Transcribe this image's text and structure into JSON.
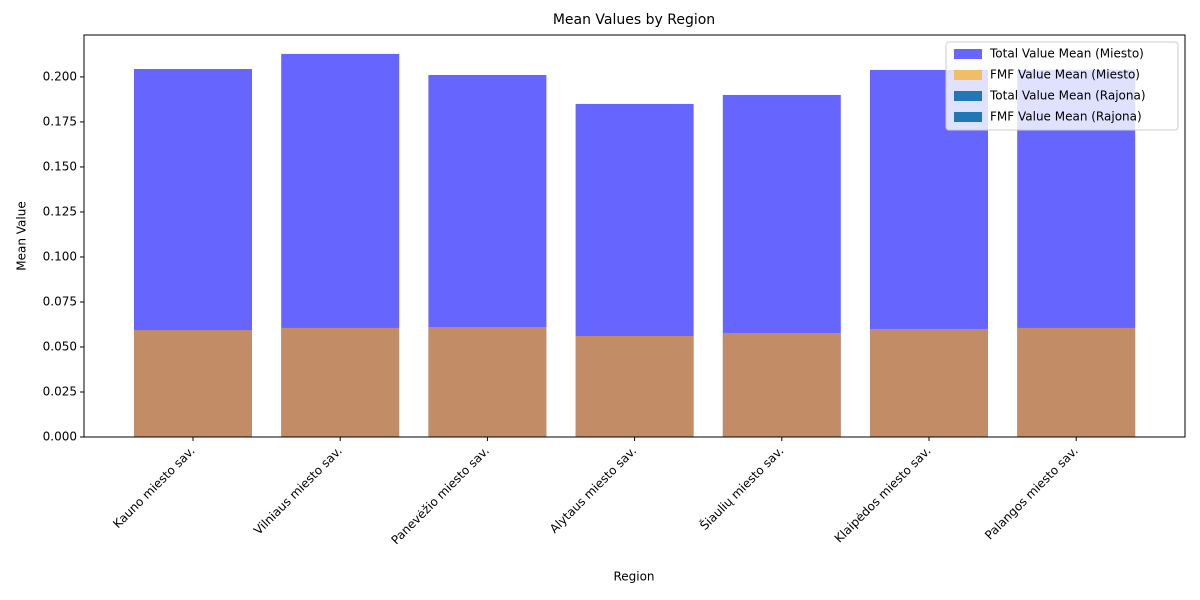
{
  "chart_data": {
    "type": "bar",
    "title": "Mean Values by Region",
    "xlabel": "Region",
    "ylabel": "Mean Value",
    "categories": [
      "Kauno miesto sav.",
      "Vilniaus miesto sav.",
      "Panevėžio miesto sav.",
      "Alytaus miesto sav.",
      "Šiaulių miesto sav.",
      "Klaipėdos miesto sav.",
      "Palangos miesto sav."
    ],
    "series": [
      {
        "name": "Total Value Mean (Miesto)",
        "color": "blue",
        "opacity": 0.6,
        "values": [
          0.2044,
          0.2128,
          0.2011,
          0.185,
          0.19,
          0.2039,
          0.204
        ]
      },
      {
        "name": "FMF Value Mean (Miesto)",
        "color": "orange",
        "opacity": 0.6,
        "values": [
          0.0594,
          0.0606,
          0.0611,
          0.0561,
          0.0578,
          0.06,
          0.0606
        ]
      },
      {
        "name": "Total Value Mean (Rajona)",
        "color": "#1f77b4",
        "opacity": 1,
        "values": [
          null,
          null,
          null,
          null,
          null,
          null,
          null
        ]
      },
      {
        "name": "FMF Value Mean (Rajona)",
        "color": "#1f77b4",
        "opacity": 1,
        "values": [
          null,
          null,
          null,
          null,
          null,
          null,
          null
        ]
      }
    ],
    "ylim": [
      0,
      0.2233
    ],
    "yticks": [
      {
        "value": 0,
        "label": "0.000"
      },
      {
        "value": 0.025,
        "label": "0.025"
      },
      {
        "value": 0.05,
        "label": "0.050"
      },
      {
        "value": 0.075,
        "label": "0.075"
      },
      {
        "value": 0.1,
        "label": "0.100"
      },
      {
        "value": 0.125,
        "label": "0.125"
      },
      {
        "value": 0.15,
        "label": "0.150"
      },
      {
        "value": 0.175,
        "label": "0.175"
      },
      {
        "value": 0.2,
        "label": "0.200"
      }
    ],
    "legend": "upper right"
  }
}
